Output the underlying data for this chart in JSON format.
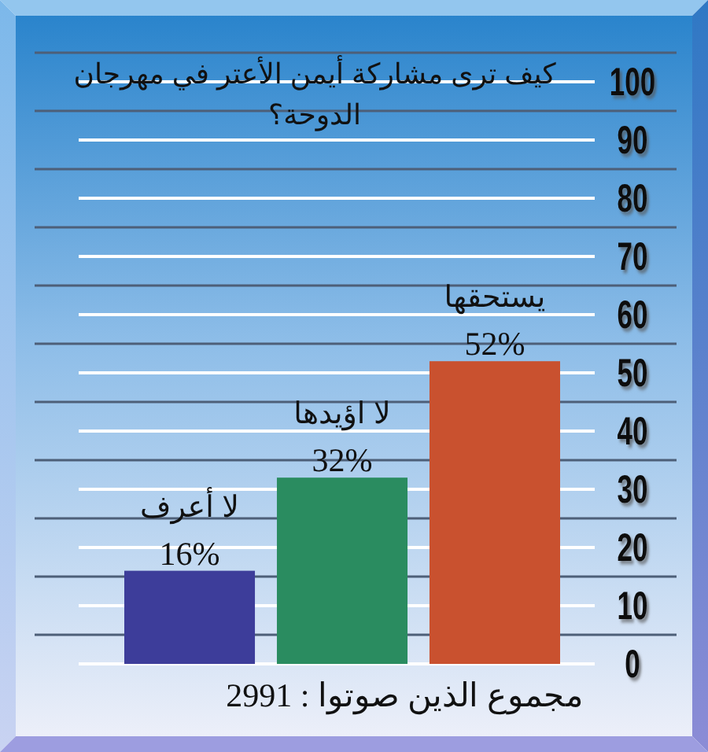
{
  "chart_data": {
    "type": "bar",
    "title": "كيف ترى مشاركة أيمن الأعتر في مهرجان الدوحة؟",
    "categories": [
      "لا أعرف",
      "لا اؤيدها",
      "يستحقها"
    ],
    "values": [
      16,
      32,
      52
    ],
    "colors": [
      "#3d3d9a",
      "#2a8c60",
      "#c9512f"
    ],
    "value_labels": [
      "16%",
      "32%",
      "52%"
    ],
    "ylim": [
      0,
      105
    ],
    "yticks": [
      0,
      {
        "value": 5,
        "label": null
      },
      10,
      {
        "value": 15,
        "label": null
      },
      20,
      {
        "value": 25,
        "label": null
      },
      30,
      {
        "value": 35,
        "label": null
      },
      40,
      {
        "value": 45,
        "label": null
      },
      50,
      {
        "value": 55,
        "label": null
      },
      60,
      {
        "value": 65,
        "label": null
      },
      70,
      {
        "value": 75,
        "label": null
      },
      80,
      {
        "value": 85,
        "label": null
      },
      90,
      {
        "value": 95,
        "label": null
      },
      100,
      {
        "value": 105,
        "label": null
      }
    ],
    "grid": "y",
    "annotations": [
      "مجموع الذين صوتوا : 2991"
    ]
  }
}
